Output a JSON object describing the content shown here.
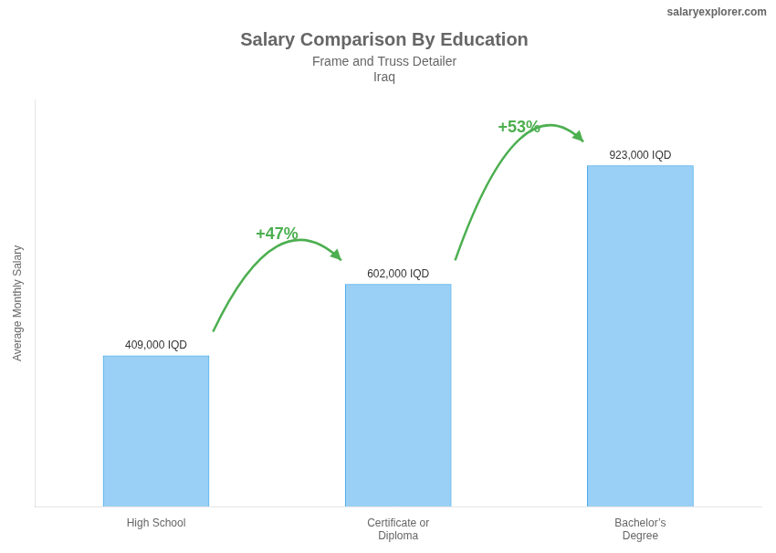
{
  "chart_data": {
    "type": "bar",
    "title": "Salary Comparison By Education",
    "subtitle": [
      "Frame and Truss Detailer",
      "Iraq"
    ],
    "watermark": "salaryexplorer.com",
    "ylabel": "Average Monthly Salary",
    "categories": [
      "High School",
      "Certificate or\nDiploma",
      "Bachelor’s\nDegree"
    ],
    "values": [
      409000,
      602000,
      923000
    ],
    "value_labels": [
      "409,000 IQD",
      "602,000 IQD",
      "923,000 IQD"
    ],
    "data_labels": true,
    "annotations": [
      "+47%",
      "+53%"
    ],
    "ylim": [
      0,
      1100000
    ],
    "tick_labels": "x",
    "grid": false,
    "legend": false
  }
}
